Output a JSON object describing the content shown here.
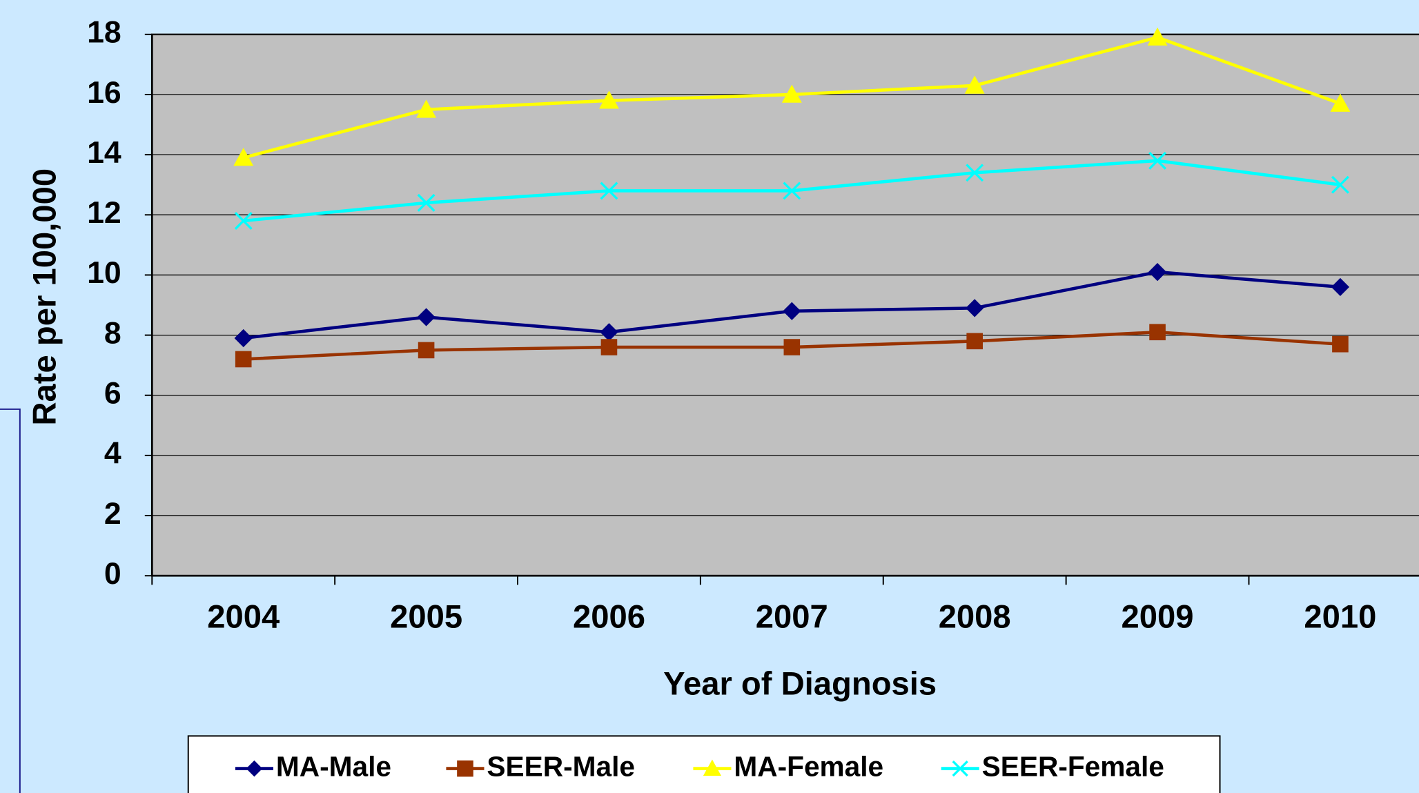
{
  "chart_data": {
    "type": "line",
    "categories": [
      "2004",
      "2005",
      "2006",
      "2007",
      "2008",
      "2009",
      "2010"
    ],
    "x_label": "Year of Diagnosis",
    "y_label": "Rate per 100,000",
    "ylim": [
      0,
      18
    ],
    "yticks": [
      0,
      2,
      4,
      6,
      8,
      10,
      12,
      14,
      16,
      18
    ],
    "grid": true,
    "legend": "bottom",
    "series": [
      {
        "name": "MA-Male",
        "color": "#000080",
        "marker": "diamond",
        "values": [
          7.9,
          8.6,
          8.1,
          8.8,
          8.9,
          10.1,
          9.6
        ]
      },
      {
        "name": "SEER-Male",
        "color": "#993300",
        "marker": "square",
        "values": [
          7.2,
          7.5,
          7.6,
          7.6,
          7.8,
          8.1,
          7.7
        ]
      },
      {
        "name": "MA-Female",
        "color": "#ffff00",
        "marker": "triangle",
        "values": [
          13.9,
          15.5,
          15.8,
          16.0,
          16.3,
          17.9,
          15.7
        ]
      },
      {
        "name": "SEER-Female",
        "color": "#00ffff",
        "marker": "x",
        "values": [
          11.8,
          12.4,
          12.8,
          12.8,
          13.4,
          13.8,
          13.0
        ]
      }
    ]
  }
}
